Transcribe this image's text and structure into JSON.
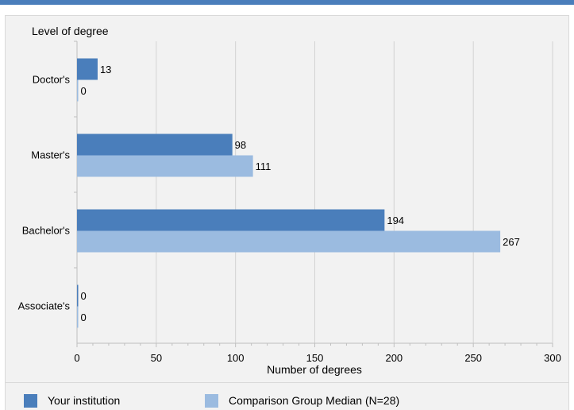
{
  "chart_data": {
    "type": "bar",
    "orientation": "horizontal",
    "categories": [
      "Doctor's",
      "Master's",
      "Bachelor's",
      "Associate's"
    ],
    "series": [
      {
        "name": "Your institution",
        "values": [
          13,
          98,
          194,
          0
        ],
        "color": "#4a7ebb"
      },
      {
        "name": "Comparison Group Median (N=28)",
        "values": [
          0,
          111,
          267,
          0
        ],
        "color": "#9bbbe0"
      }
    ],
    "ylabel": "Level of degree",
    "xlabel": "Number of degrees",
    "xlim": [
      0,
      300
    ],
    "xticks": [
      "0",
      "50",
      "100",
      "150",
      "200",
      "250",
      "300"
    ],
    "grid": true,
    "legend_position": "bottom"
  },
  "colors": {
    "accent_bar": "#4a7ebb",
    "panel_background": "#f2f2f2",
    "gridline": "#d3d3d3"
  }
}
